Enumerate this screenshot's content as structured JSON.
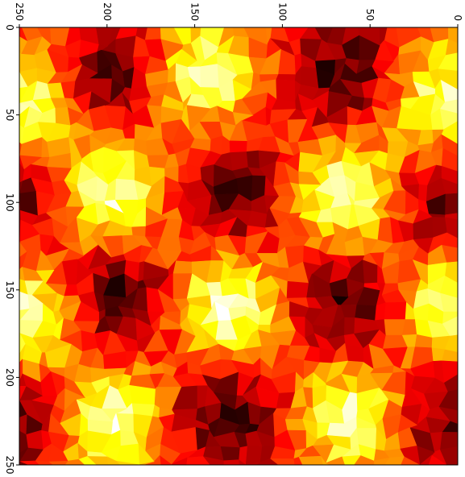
{
  "chart_data": {
    "type": "heatmap",
    "colormap": "hot",
    "orientation": "rotated-90-clockwise",
    "x_axis": {
      "position": "top",
      "direction": "decreasing",
      "range": [
        0,
        250
      ],
      "ticks": [
        250,
        200,
        150,
        100,
        50,
        0
      ],
      "tick_labels": [
        "250",
        "200",
        "150",
        "100",
        "50",
        "0"
      ]
    },
    "y_axis": {
      "position": "left",
      "direction": "increasing-downward",
      "range": [
        0,
        250
      ],
      "ticks": [
        0,
        50,
        100,
        150,
        200,
        250
      ],
      "tick_labels": [
        "0",
        "50",
        "100",
        "150",
        "200",
        "250"
      ]
    },
    "grid": false,
    "legend": "none",
    "field": {
      "description": "mosaic of polygonal cells forming a periodic pattern of dark and bright blobs",
      "blobs": [
        {
          "x": 195,
          "y": 28,
          "value": 0.08
        },
        {
          "x": 145,
          "y": 28,
          "value": 0.92
        },
        {
          "x": 65,
          "y": 28,
          "value": 0.06
        },
        {
          "x": 10,
          "y": 40,
          "value": 0.88
        },
        {
          "x": 248,
          "y": 45,
          "value": 0.92
        },
        {
          "x": 200,
          "y": 95,
          "value": 0.95
        },
        {
          "x": 125,
          "y": 95,
          "value": 0.08
        },
        {
          "x": 65,
          "y": 95,
          "value": 0.94
        },
        {
          "x": 248,
          "y": 95,
          "value": 0.1
        },
        {
          "x": 5,
          "y": 100,
          "value": 0.12
        },
        {
          "x": 195,
          "y": 155,
          "value": 0.06
        },
        {
          "x": 130,
          "y": 160,
          "value": 0.95
        },
        {
          "x": 65,
          "y": 160,
          "value": 0.06
        },
        {
          "x": 248,
          "y": 165,
          "value": 0.94
        },
        {
          "x": 5,
          "y": 160,
          "value": 0.92
        },
        {
          "x": 200,
          "y": 225,
          "value": 0.95
        },
        {
          "x": 130,
          "y": 222,
          "value": 0.06
        },
        {
          "x": 60,
          "y": 222,
          "value": 0.95
        },
        {
          "x": 248,
          "y": 225,
          "value": 0.1
        },
        {
          "x": 10,
          "y": 222,
          "value": 0.12
        }
      ],
      "base_value": 0.42
    }
  }
}
